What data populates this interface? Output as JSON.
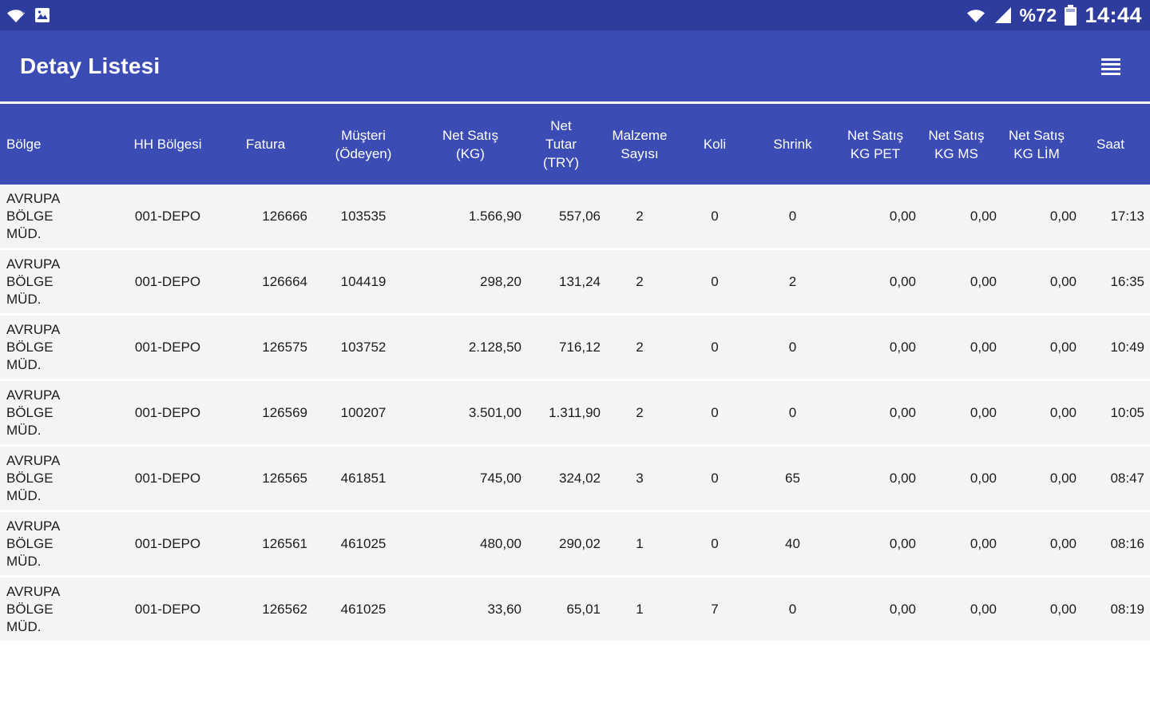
{
  "status_bar": {
    "time": "14:44",
    "battery_level": "%72",
    "left_icons": [
      "wifi-notification-icon",
      "screenshot-notification-icon"
    ],
    "right_icons": [
      "wifi-icon",
      "signal-strength-icon",
      "battery-icon"
    ]
  },
  "app_bar": {
    "title": "Detay Listesi",
    "menu_icon": "list-menu-icon",
    "accent_color": "#3c4cb5",
    "status_bar_color": "#2e3c9e"
  },
  "table": {
    "row_background": "#f4f4f4",
    "columns": [
      {
        "key": "bolge",
        "label": "Bölge"
      },
      {
        "key": "hh-bolgesi",
        "label": "HH Bölgesi"
      },
      {
        "key": "fatura",
        "label": "Fatura"
      },
      {
        "key": "musteri-odeyen",
        "label": "Müşteri (Ödeyen)"
      },
      {
        "key": "net-satis-kg",
        "label": "Net Satış (KG)"
      },
      {
        "key": "net-tutar-try",
        "label": "Net Tutar (TRY)"
      },
      {
        "key": "malzeme-sayisi",
        "label": "Malzeme Sayısı"
      },
      {
        "key": "koli",
        "label": "Koli"
      },
      {
        "key": "shrink",
        "label": "Shrink"
      },
      {
        "key": "net-satis-kg-pet",
        "label": "Net Satış KG PET"
      },
      {
        "key": "net-satis-kg-ms",
        "label": "Net Satış KG MS"
      },
      {
        "key": "net-satis-kg-lim",
        "label": "Net Satış KG LİM"
      },
      {
        "key": "saat",
        "label": "Saat"
      }
    ],
    "rows": [
      [
        "AVRUPA BÖLGE MÜD.",
        "001-DEPO",
        "126666",
        "103535",
        "1.566,90",
        "557,06",
        "2",
        "0",
        "0",
        "0,00",
        "0,00",
        "0,00",
        "17:13"
      ],
      [
        "AVRUPA BÖLGE MÜD.",
        "001-DEPO",
        "126664",
        "104419",
        "298,20",
        "131,24",
        "2",
        "0",
        "2",
        "0,00",
        "0,00",
        "0,00",
        "16:35"
      ],
      [
        "AVRUPA BÖLGE MÜD.",
        "001-DEPO",
        "126575",
        "103752",
        "2.128,50",
        "716,12",
        "2",
        "0",
        "0",
        "0,00",
        "0,00",
        "0,00",
        "10:49"
      ],
      [
        "AVRUPA BÖLGE MÜD.",
        "001-DEPO",
        "126569",
        "100207",
        "3.501,00",
        "1.311,90",
        "2",
        "0",
        "0",
        "0,00",
        "0,00",
        "0,00",
        "10:05"
      ],
      [
        "AVRUPA BÖLGE MÜD.",
        "001-DEPO",
        "126565",
        "461851",
        "745,00",
        "324,02",
        "3",
        "0",
        "65",
        "0,00",
        "0,00",
        "0,00",
        "08:47"
      ],
      [
        "AVRUPA BÖLGE MÜD.",
        "001-DEPO",
        "126561",
        "461025",
        "480,00",
        "290,02",
        "1",
        "0",
        "40",
        "0,00",
        "0,00",
        "0,00",
        "08:16"
      ],
      [
        "AVRUPA BÖLGE MÜD.",
        "001-DEPO",
        "126562",
        "461025",
        "33,60",
        "65,01",
        "1",
        "7",
        "0",
        "0,00",
        "0,00",
        "0,00",
        "08:19"
      ]
    ]
  }
}
